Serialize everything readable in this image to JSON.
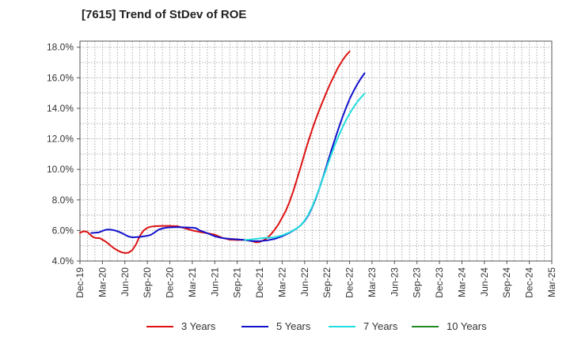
{
  "title": "[7615]  Trend of StDev of ROE",
  "chart_data": {
    "type": "line",
    "title": "[7615]  Trend of StDev of ROE",
    "xlabel": "",
    "ylabel": "",
    "x_tick_labels": [
      "Dec-19",
      "Mar-20",
      "Jun-20",
      "Sep-20",
      "Dec-20",
      "Mar-21",
      "Jun-21",
      "Sep-21",
      "Dec-21",
      "Mar-22",
      "Jun-22",
      "Sep-22",
      "Dec-22",
      "Mar-23",
      "Jun-23",
      "Sep-23",
      "Dec-23",
      "Mar-24",
      "Jun-24",
      "Sep-24",
      "Dec-24",
      "Mar-25"
    ],
    "y_tick_labels": [
      "4.0%",
      "6.0%",
      "8.0%",
      "10.0%",
      "12.0%",
      "14.0%",
      "16.0%",
      "18.0%"
    ],
    "ylim": [
      4.0,
      18.4
    ],
    "y_ticks": [
      4.0,
      6.0,
      8.0,
      10.0,
      12.0,
      14.0,
      16.0,
      18.0
    ],
    "x_minor_per_major": 3,
    "grid": true,
    "legend_position": "bottom",
    "series": [
      {
        "name": "3 Years",
        "color": "#dd1111",
        "points": [
          [
            0,
            5.85
          ],
          [
            0.5,
            5.95
          ],
          [
            1,
            5.9
          ],
          [
            1.3,
            5.75
          ],
          [
            1.8,
            5.55
          ],
          [
            2.2,
            5.5
          ],
          [
            2.6,
            5.5
          ],
          [
            3,
            5.4
          ],
          [
            3.5,
            5.25
          ],
          [
            4,
            5.05
          ],
          [
            4.5,
            4.85
          ],
          [
            5,
            4.7
          ],
          [
            5.5,
            4.58
          ],
          [
            6,
            4.52
          ],
          [
            6.5,
            4.55
          ],
          [
            7,
            4.72
          ],
          [
            7.5,
            5.1
          ],
          [
            8,
            5.65
          ],
          [
            8.5,
            6.0
          ],
          [
            9,
            6.18
          ],
          [
            9.5,
            6.25
          ],
          [
            10,
            6.28
          ],
          [
            11,
            6.3
          ],
          [
            12,
            6.3
          ],
          [
            13,
            6.28
          ],
          [
            14,
            6.15
          ],
          [
            15,
            6.0
          ],
          [
            16,
            5.9
          ],
          [
            17,
            5.82
          ],
          [
            18,
            5.72
          ],
          [
            19,
            5.52
          ],
          [
            20,
            5.4
          ],
          [
            21,
            5.38
          ],
          [
            22,
            5.38
          ],
          [
            23,
            5.3
          ],
          [
            23.5,
            5.22
          ],
          [
            24,
            5.25
          ],
          [
            24.5,
            5.35
          ],
          [
            25,
            5.5
          ],
          [
            25.5,
            5.75
          ],
          [
            26,
            6.05
          ],
          [
            26.5,
            6.4
          ],
          [
            27,
            6.85
          ],
          [
            27.5,
            7.3
          ],
          [
            28,
            7.9
          ],
          [
            28.5,
            8.6
          ],
          [
            29,
            9.4
          ],
          [
            29.5,
            10.2
          ],
          [
            30,
            11.05
          ],
          [
            30.5,
            11.85
          ],
          [
            31,
            12.6
          ],
          [
            31.5,
            13.3
          ],
          [
            32,
            13.95
          ],
          [
            32.5,
            14.55
          ],
          [
            33,
            15.15
          ],
          [
            33.5,
            15.7
          ],
          [
            34,
            16.2
          ],
          [
            34.5,
            16.7
          ],
          [
            35,
            17.1
          ],
          [
            35.5,
            17.45
          ],
          [
            36,
            17.72
          ]
        ]
      },
      {
        "name": "5 Years",
        "color": "#1111cc",
        "points": [
          [
            1.5,
            5.83
          ],
          [
            2,
            5.85
          ],
          [
            2.5,
            5.87
          ],
          [
            3,
            5.97
          ],
          [
            3.5,
            6.05
          ],
          [
            4,
            6.06
          ],
          [
            4.5,
            6.02
          ],
          [
            5,
            5.95
          ],
          [
            5.5,
            5.85
          ],
          [
            6,
            5.72
          ],
          [
            6.5,
            5.6
          ],
          [
            7,
            5.55
          ],
          [
            8,
            5.58
          ],
          [
            9,
            5.65
          ],
          [
            9.5,
            5.72
          ],
          [
            10,
            5.88
          ],
          [
            10.5,
            6.05
          ],
          [
            11,
            6.13
          ],
          [
            11.5,
            6.18
          ],
          [
            12,
            6.2
          ],
          [
            13,
            6.22
          ],
          [
            14,
            6.2
          ],
          [
            15,
            6.18
          ],
          [
            15.5,
            6.15
          ],
          [
            16,
            6.0
          ],
          [
            17,
            5.82
          ],
          [
            18,
            5.62
          ],
          [
            19,
            5.5
          ],
          [
            20,
            5.45
          ],
          [
            21,
            5.42
          ],
          [
            22,
            5.38
          ],
          [
            23,
            5.3
          ],
          [
            24,
            5.3
          ],
          [
            25,
            5.35
          ],
          [
            26,
            5.45
          ],
          [
            27,
            5.62
          ],
          [
            28,
            5.85
          ],
          [
            29,
            6.15
          ],
          [
            29.5,
            6.35
          ],
          [
            30,
            6.62
          ],
          [
            30.5,
            7.0
          ],
          [
            31,
            7.5
          ],
          [
            31.5,
            8.1
          ],
          [
            32,
            8.8
          ],
          [
            32.5,
            9.55
          ],
          [
            33,
            10.35
          ],
          [
            33.5,
            11.15
          ],
          [
            34,
            11.9
          ],
          [
            34.5,
            12.65
          ],
          [
            35,
            13.35
          ],
          [
            35.5,
            14.0
          ],
          [
            36,
            14.6
          ],
          [
            36.5,
            15.1
          ],
          [
            37,
            15.55
          ],
          [
            37.5,
            15.95
          ],
          [
            38,
            16.3
          ]
        ]
      },
      {
        "name": "7 Years",
        "color": "#22dddd",
        "points": [
          [
            22,
            5.38
          ],
          [
            23,
            5.42
          ],
          [
            24,
            5.48
          ],
          [
            25,
            5.52
          ],
          [
            26,
            5.55
          ],
          [
            27,
            5.68
          ],
          [
            28,
            5.88
          ],
          [
            29,
            6.15
          ],
          [
            29.5,
            6.35
          ],
          [
            30,
            6.65
          ],
          [
            30.5,
            7.05
          ],
          [
            31,
            7.55
          ],
          [
            31.5,
            8.15
          ],
          [
            32,
            8.8
          ],
          [
            32.5,
            9.5
          ],
          [
            33,
            10.2
          ],
          [
            33.5,
            10.9
          ],
          [
            34,
            11.55
          ],
          [
            34.5,
            12.15
          ],
          [
            35,
            12.7
          ],
          [
            35.5,
            13.2
          ],
          [
            36,
            13.65
          ],
          [
            36.5,
            14.05
          ],
          [
            37,
            14.4
          ],
          [
            37.5,
            14.7
          ],
          [
            38,
            14.95
          ]
        ]
      },
      {
        "name": "10 Years",
        "color": "#228822",
        "points": []
      }
    ]
  }
}
